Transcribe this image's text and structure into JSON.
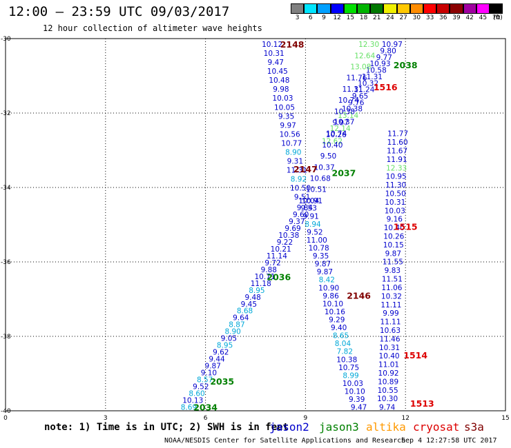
{
  "header": {
    "title": "12:00 — 23:59 UTC 09/03/2017",
    "subtitle": "12 hour collection of altimeter wave heights"
  },
  "legend": {
    "unit_label": "(ft)",
    "bins": [
      {
        "label": "3",
        "color": "#808080"
      },
      {
        "label": "6",
        "color": "#00e5ff"
      },
      {
        "label": "9",
        "color": "#00a0ff"
      },
      {
        "label": "12",
        "color": "#0000ff"
      },
      {
        "label": "15",
        "color": "#00e000"
      },
      {
        "label": "18",
        "color": "#00b400"
      },
      {
        "label": "21",
        "color": "#007800"
      },
      {
        "label": "24",
        "color": "#f0f000"
      },
      {
        "label": "27",
        "color": "#ffc800"
      },
      {
        "label": "30",
        "color": "#ff8c00"
      },
      {
        "label": "33",
        "color": "#ff0000"
      },
      {
        "label": "36",
        "color": "#c80000"
      },
      {
        "label": "39",
        "color": "#8b0000"
      },
      {
        "label": "42",
        "color": "#a000a0"
      },
      {
        "label": "45",
        "color": "#ff00ff"
      },
      {
        "label": "70",
        "color": "#000000"
      }
    ]
  },
  "footer": {
    "note": "note: 1) Time is in UTC; 2) SWH is in feet",
    "credit": "NOAA/NESDIS Center for Satellite Applications and Research",
    "timestamp": "Sep  4 12:27:58 UTC 2017"
  },
  "satellites": [
    {
      "name": "jason2",
      "color": "#0000cc"
    },
    {
      "name": "jason3",
      "color": "#008000"
    },
    {
      "name": "altika",
      "color": "#ff9900"
    },
    {
      "name": "cryosat",
      "color": "#dd0000"
    },
    {
      "name": "s3a",
      "color": "#800000"
    }
  ],
  "chart_data": {
    "type": "scatter",
    "title": "12 hour collection of altimeter wave heights",
    "xlim": [
      0,
      15
    ],
    "ylim": [
      -40,
      -30
    ],
    "x_ticks": [
      0,
      3,
      6,
      9,
      12,
      15
    ],
    "y_ticks": [
      -30,
      -32,
      -34,
      -36,
      -38,
      -40
    ],
    "grid": true,
    "colors": {
      "low": "#00a8d8",
      "mid": "#0000cc",
      "high": "#66e066",
      "jason3": "#008000",
      "cryosat": "#dd0000",
      "s3a": "#800000"
    },
    "track_labels": [
      {
        "text": "2148",
        "x": 8.6,
        "y": -30.15,
        "color": "#800000"
      },
      {
        "text": "2038",
        "x": 12.0,
        "y": -30.7,
        "color": "#008000"
      },
      {
        "text": "1516",
        "x": 11.4,
        "y": -31.3,
        "color": "#dd0000"
      },
      {
        "text": "2147",
        "x": 9.0,
        "y": -33.5,
        "color": "#800000"
      },
      {
        "text": "2037",
        "x": 10.15,
        "y": -33.6,
        "color": "#008000"
      },
      {
        "text": "1515",
        "x": 12.0,
        "y": -35.05,
        "color": "#dd0000"
      },
      {
        "text": "2036",
        "x": 8.2,
        "y": -36.4,
        "color": "#008000"
      },
      {
        "text": "2146",
        "x": 10.6,
        "y": -36.9,
        "color": "#800000"
      },
      {
        "text": "1514",
        "x": 12.3,
        "y": -38.5,
        "color": "#dd0000"
      },
      {
        "text": "2035",
        "x": 6.5,
        "y": -39.2,
        "color": "#008000"
      },
      {
        "text": "2034",
        "x": 6.0,
        "y": -39.9,
        "color": "#008000"
      },
      {
        "text": "1513",
        "x": 12.5,
        "y": -39.8,
        "color": "#dd0000"
      }
    ],
    "tracks": [
      {
        "name": "track-1516",
        "x_start": 11.6,
        "x_end": 9.8,
        "values": [
          "10.97",
          "9.80",
          "9.77",
          "10.93",
          "10.58",
          "11.31",
          "10.32",
          "11.24",
          "9.65",
          "9.76",
          "10.38",
          "13.14",
          "10.37",
          "12.14",
          "10.26",
          "12.62"
        ]
      },
      {
        "name": "track-2038",
        "x_start": 10.9,
        "x_end": 9.2,
        "values": [
          "12.30",
          "12.64",
          "13.08",
          "11.76",
          "11.31",
          "10.74",
          "10.38",
          "9.97",
          "10.74",
          "10.40",
          "9.50",
          "10.37",
          "10.68",
          "10.51",
          "10.91"
        ]
      },
      {
        "name": "track-2148",
        "x_start": 8.0,
        "x_end": 8.9,
        "values": [
          "10.12",
          "10.31",
          "9.47",
          "10.45",
          "10.48",
          "9.98",
          "10.03",
          "10.05",
          "9.35",
          "9.97",
          "10.56",
          "10.77",
          "8.90",
          "9.31",
          "11.31",
          "8.92",
          "10.50",
          "9.51"
        ]
      },
      {
        "name": "track-1515",
        "x_start": 11.77,
        "x_end": 11.45,
        "values": [
          "11.77",
          "11.60",
          "11.67",
          "11.91",
          "12.33",
          "10.95",
          "11.30",
          "10.50",
          "10.31",
          "10.03",
          "9.16",
          "10.40",
          "10.26",
          "10.15",
          "9.87",
          "11.55",
          "9.83",
          "11.51",
          "11.06",
          "10.32",
          "11.11",
          "9.99",
          "11.11",
          "10.63",
          "11.46",
          "10.31",
          "10.40",
          "11.01",
          "10.92",
          "10.89",
          "10.55",
          "10.30",
          "9.74"
        ]
      },
      {
        "name": "track-2036",
        "x_start": 9.1,
        "x_end": 5.5,
        "values": [
          "10.04",
          "9.84",
          "9.60",
          "9.37",
          "9.69",
          "10.38",
          "9.22",
          "10.21",
          "11.14",
          "9.72",
          "9.88",
          "10.71",
          "11.18",
          "8.95",
          "9.48",
          "9.45",
          "8.68",
          "9.64",
          "8.87",
          "8.90",
          "9.05",
          "8.95",
          "9.62",
          "9.44",
          "9.87",
          "9.10",
          "8.57",
          "9.52",
          "8.60",
          "10.13",
          "8.69"
        ]
      },
      {
        "name": "track-2146",
        "x_start": 9.1,
        "x_end": 10.6,
        "values": [
          "9.53",
          "9.91",
          "8.94",
          "9.52",
          "11.00",
          "10.78",
          "9.35",
          "9.87",
          "9.87",
          "8.42",
          "10.90",
          "9.86",
          "10.10",
          "10.16",
          "9.29",
          "9.40",
          "8.65",
          "8.04",
          "7.82",
          "10.38",
          "10.75",
          "8.99",
          "10.03",
          "10.10",
          "9.39",
          "9.47"
        ]
      }
    ]
  }
}
